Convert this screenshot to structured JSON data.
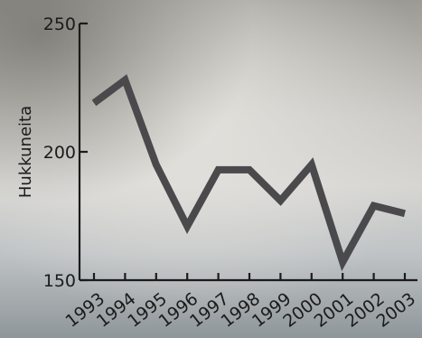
{
  "chart_data": {
    "type": "line",
    "title": "",
    "xlabel": "",
    "ylabel": "Hukkuneita",
    "x": [
      "1993",
      "1994",
      "1995",
      "1996",
      "1997",
      "1998",
      "1999",
      "2000",
      "2001",
      "2002",
      "2003"
    ],
    "series": [
      {
        "values": [
          219,
          228,
          195,
          171,
          193,
          193,
          181,
          195,
          157,
          179,
          176
        ]
      }
    ],
    "ylim": [
      150,
      250
    ],
    "yticks": [
      "150",
      "200",
      "250"
    ],
    "grid": false,
    "legend": "none",
    "colors": {
      "line": "#4a4a4c",
      "axis": "#1b1b1b",
      "text": "#1b1b1b"
    }
  }
}
